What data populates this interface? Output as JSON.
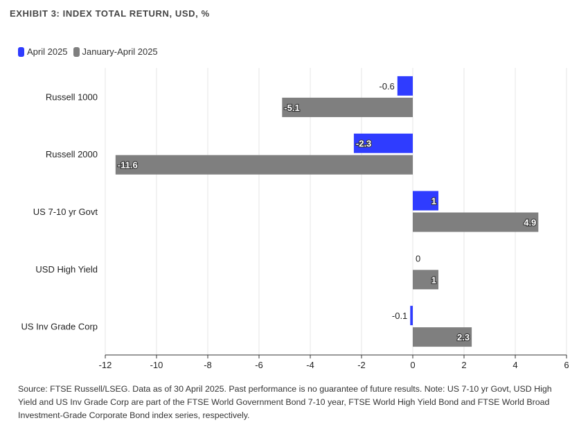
{
  "chart_data": {
    "type": "bar",
    "orientation": "horizontal",
    "title": "EXHIBIT 3: INDEX TOTAL RETURN, USD, %",
    "categories": [
      "Russell 1000",
      "Russell 2000",
      "US 7-10 yr Govt",
      "USD High Yield",
      "US Inv Grade Corp"
    ],
    "series": [
      {
        "name": "April 2025",
        "color": "#2f3cff",
        "values": [
          -0.6,
          -2.3,
          1,
          0,
          -0.1
        ],
        "labels": [
          "-0.6",
          "-2.3",
          "1",
          "0",
          "-0.1"
        ]
      },
      {
        "name": "January-April 2025",
        "color": "#7f7f7f",
        "values": [
          -5.1,
          -11.6,
          4.9,
          1,
          2.3
        ],
        "labels": [
          "-5.1",
          "-11.6",
          "4.9",
          "1",
          "2.3"
        ]
      }
    ],
    "xlim": [
      -12,
      6
    ],
    "xticks": [
      "-12",
      "-10",
      "-8",
      "-6",
      "-4",
      "-2",
      "0",
      "2",
      "4",
      "6"
    ],
    "grid": true,
    "legend": "top-left"
  },
  "source_note": "Source: FTSE Russell/LSEG. Data as of 30 April 2025. Past performance is no guarantee of future results. Note: US 7-10 yr Govt, USD High Yield and US Inv Grade Corp are part of the FTSE World Government Bond 7-10 year, FTSE World High Yield Bond and FTSE World Broad Investment-Grade Corporate Bond index series, respectively."
}
